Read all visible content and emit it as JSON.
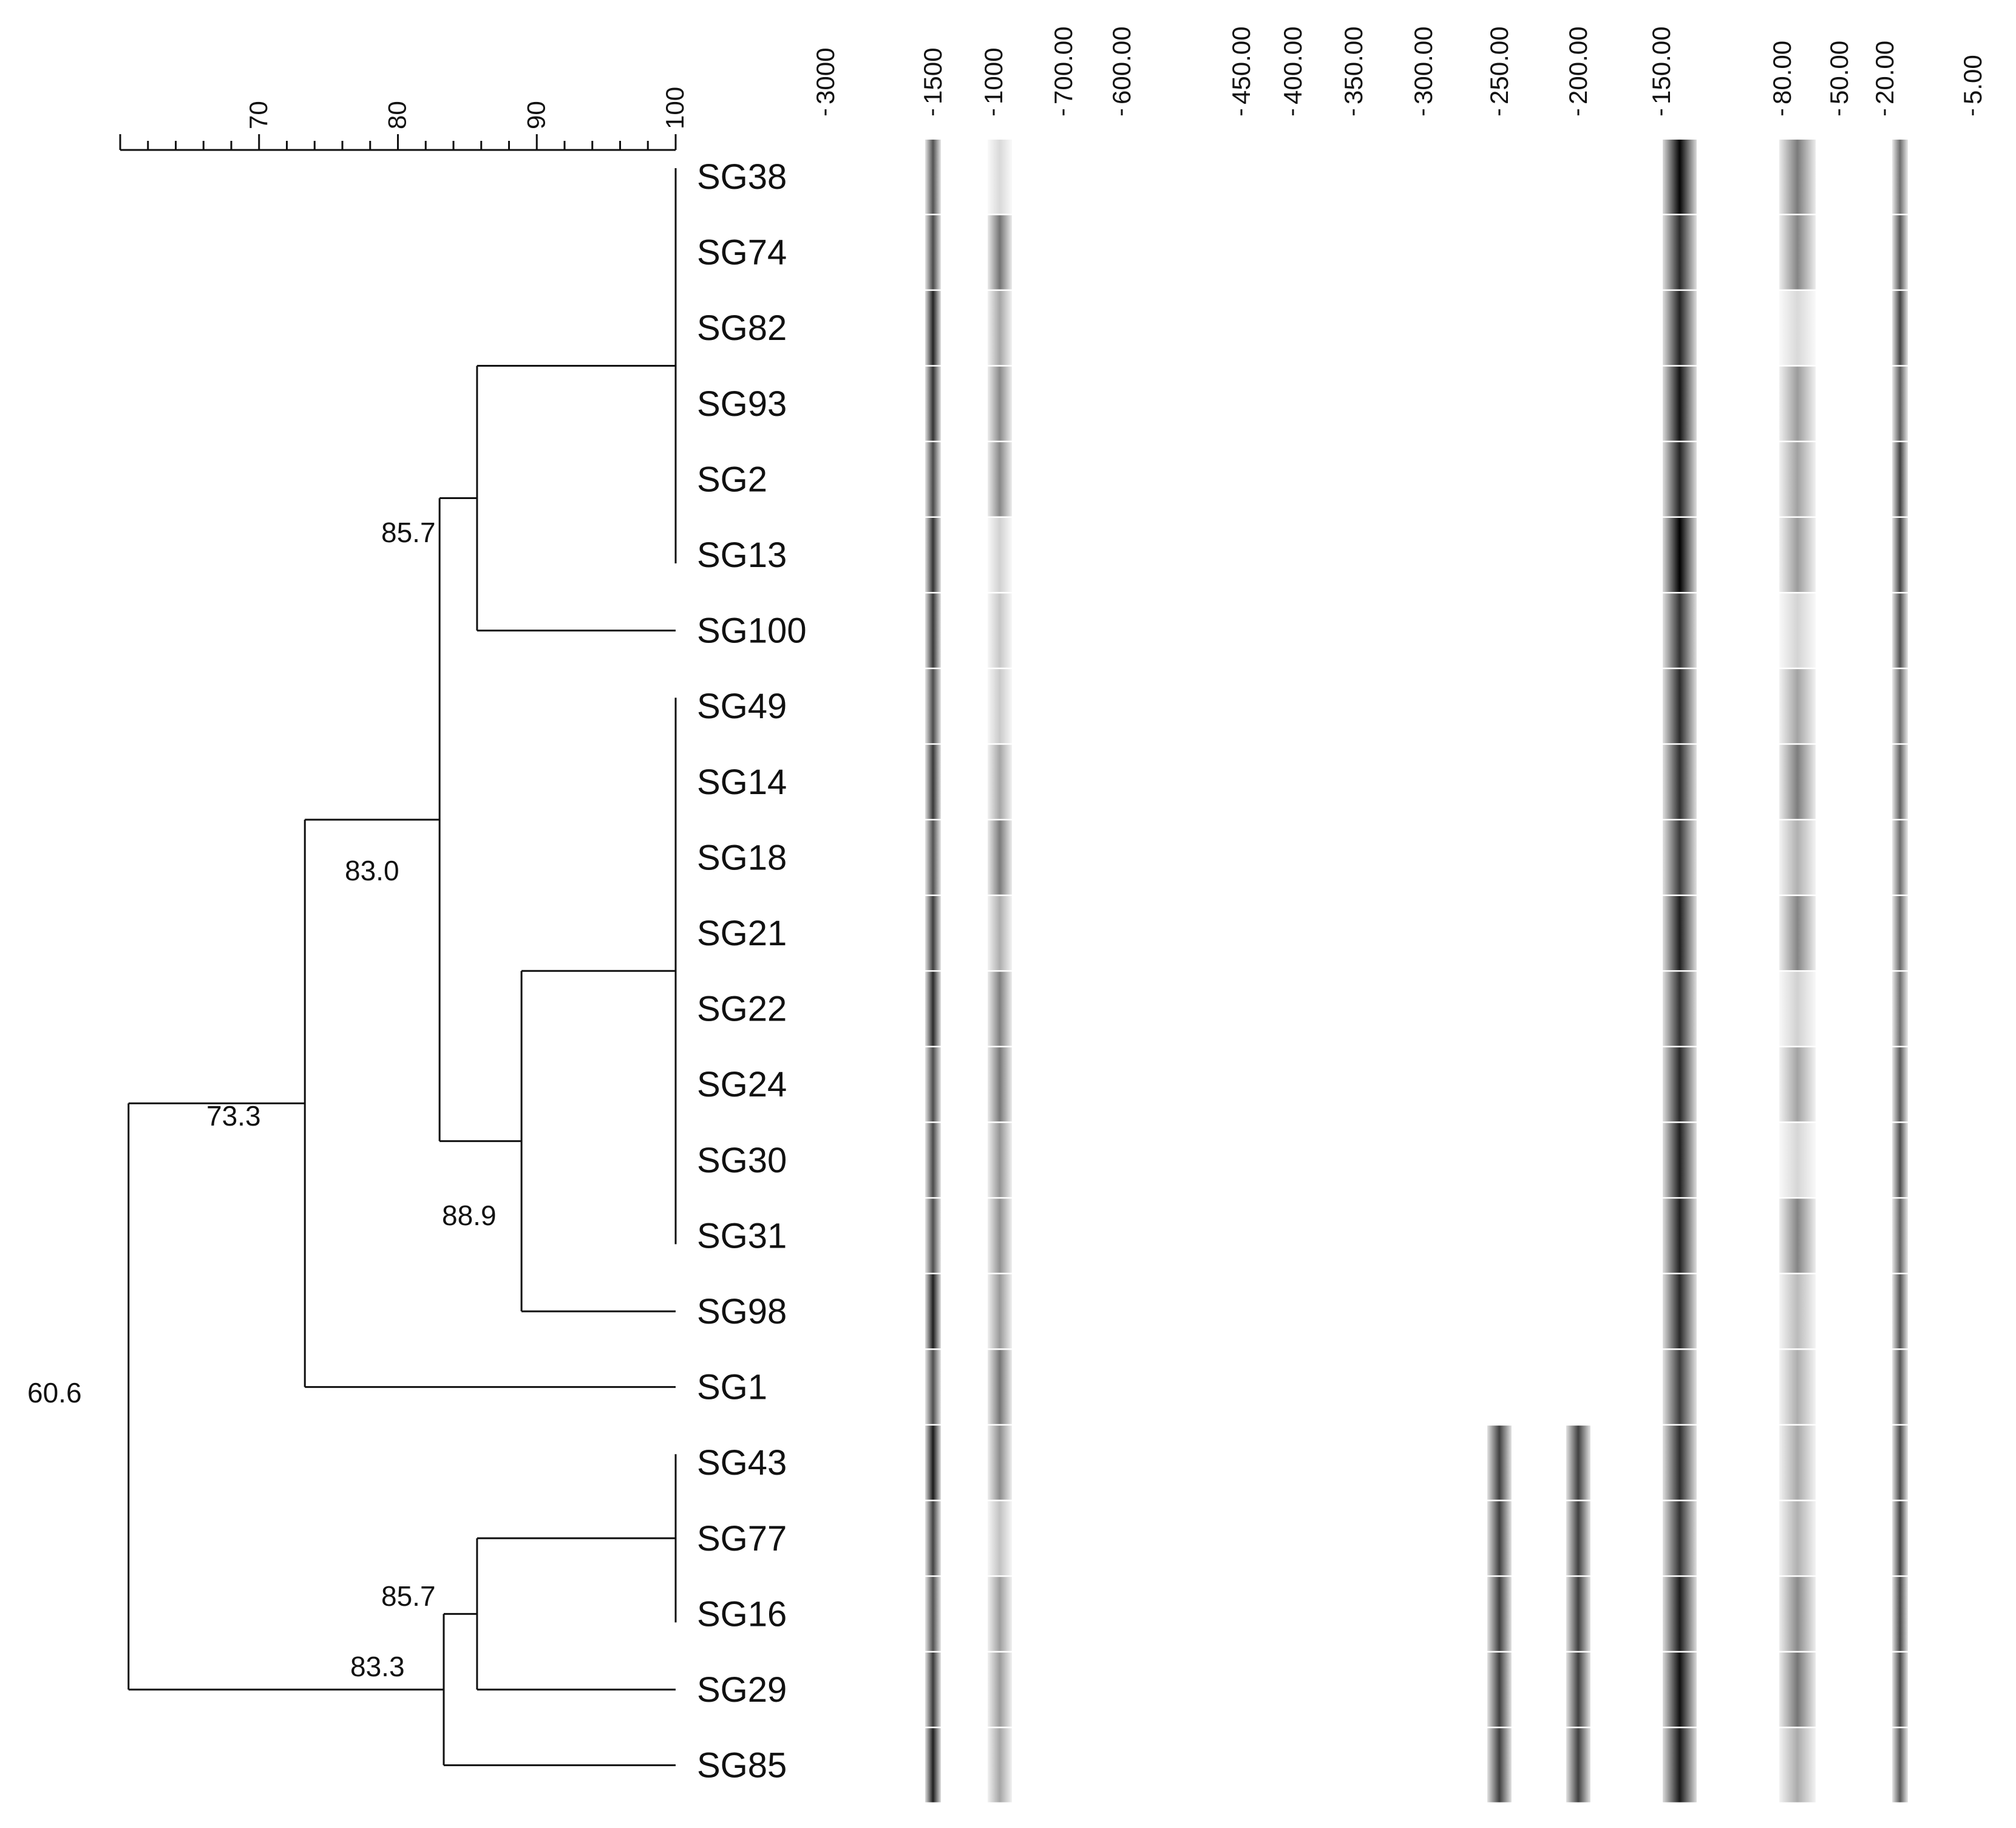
{
  "similarity_axis": {
    "tick_labels": [
      "70",
      "80",
      "90",
      "100"
    ],
    "range": [
      60,
      100
    ],
    "minor_step": 2
  },
  "size_axis": {
    "tick_labels": [
      "3000",
      "1500",
      "1000",
      "700.00",
      "600.00",
      "450.00",
      "400.00",
      "350.00",
      "300.00",
      "250.00",
      "200.00",
      "150.00",
      "80.00",
      "50.00",
      "20.00",
      "5.00"
    ]
  },
  "samples": [
    "SG38",
    "SG74",
    "SG82",
    "SG93",
    "SG2",
    "SG13",
    "SG100",
    "SG49",
    "SG14",
    "SG18",
    "SG21",
    "SG22",
    "SG24",
    "SG30",
    "SG31",
    "SG98",
    "SG1",
    "SG43",
    "SG77",
    "SG16",
    "SG29",
    "SG85"
  ],
  "node_labels": {
    "root": "60.6",
    "n1": "73.3",
    "n2": "83.0",
    "n3": "85.7",
    "n4": "88.9",
    "n5": "83.3",
    "n6": "85.7"
  },
  "dendrogram": {
    "root": {
      "sim": 60.6,
      "children": [
        "n1",
        "n5"
      ]
    },
    "n1": {
      "sim": 73.3,
      "children": [
        "n2",
        "SG1"
      ]
    },
    "n2": {
      "sim": 83.0,
      "children": [
        "n3",
        "n4"
      ]
    },
    "n3": {
      "sim": 85.7,
      "children": [
        "g1",
        "SG100"
      ]
    },
    "g1": {
      "sim": 100,
      "members": [
        "SG38",
        "SG74",
        "SG82",
        "SG93",
        "SG2",
        "SG13"
      ]
    },
    "n4": {
      "sim": 88.9,
      "children": [
        "g2",
        "SG98"
      ]
    },
    "g2": {
      "sim": 100,
      "members": [
        "SG49",
        "SG14",
        "SG18",
        "SG21",
        "SG22",
        "SG24",
        "SG30",
        "SG31"
      ]
    },
    "n5": {
      "sim": 83.3,
      "children": [
        "n6",
        "SG85"
      ]
    },
    "n6": {
      "sim": 85.7,
      "children": [
        "g3",
        "SG29"
      ]
    },
    "g3": {
      "sim": 100,
      "members": [
        "SG43",
        "SG77",
        "SG16"
      ]
    }
  },
  "gel_bands": {
    "major_bands": [
      {
        "size": "1500",
        "intensity": 0.9
      },
      {
        "size": "150.00",
        "intensity": 1.0
      },
      {
        "size": "20.00",
        "intensity": 0.75
      }
    ],
    "variable_bands_top_group": [
      "1000",
      "80.00"
    ],
    "variable_bands_bottom_group": [
      "250.00",
      "200.00",
      "1000",
      "80.00"
    ]
  }
}
